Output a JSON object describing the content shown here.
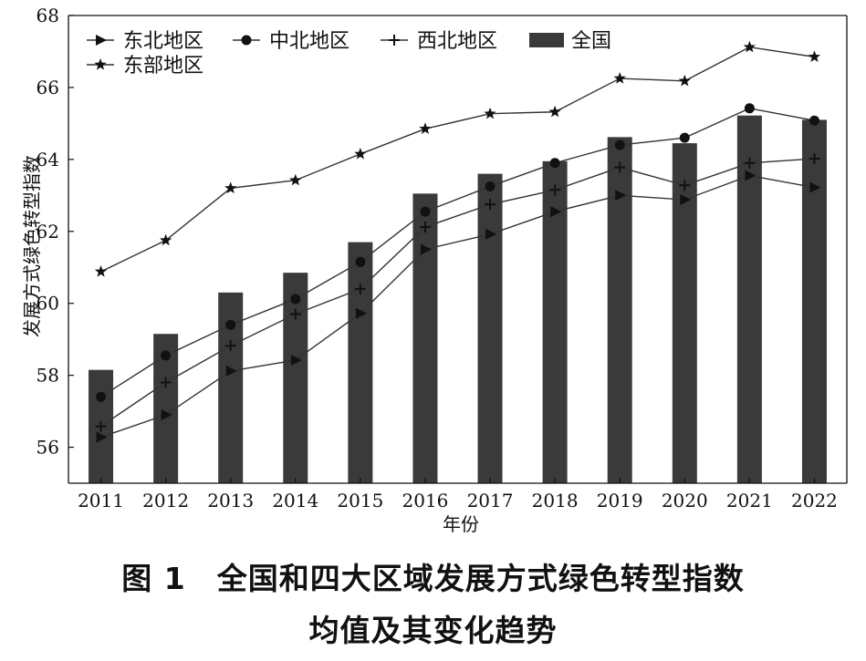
{
  "chart_data": {
    "type": "bar",
    "categories": [
      "2011",
      "2012",
      "2013",
      "2014",
      "2015",
      "2016",
      "2017",
      "2018",
      "2019",
      "2020",
      "2021",
      "2022"
    ],
    "xlabel": "年份",
    "ylabel": "发展方式绿色转型指数",
    "ylim": [
      55,
      68
    ],
    "yticks": [
      56,
      58,
      60,
      62,
      64,
      66,
      68
    ],
    "legend": "top-left",
    "bar_series": {
      "name": "全国",
      "color": "#3a3a3a",
      "values": [
        58.15,
        59.15,
        60.3,
        60.85,
        61.7,
        63.05,
        63.6,
        63.95,
        64.62,
        64.45,
        65.22,
        65.1
      ]
    },
    "line_series": [
      {
        "name": "东北地区",
        "marker": "triangle-right",
        "values": [
          56.28,
          56.9,
          58.12,
          58.42,
          59.72,
          61.5,
          61.92,
          62.55,
          63.0,
          62.88,
          63.55,
          63.22
        ]
      },
      {
        "name": "中北地区",
        "marker": "circle",
        "values": [
          57.4,
          58.55,
          59.4,
          60.12,
          61.15,
          62.55,
          63.25,
          63.9,
          64.4,
          64.6,
          65.42,
          65.08
        ]
      },
      {
        "name": "西北地区",
        "marker": "plus",
        "values": [
          56.58,
          57.8,
          58.82,
          59.7,
          60.4,
          62.12,
          62.75,
          63.15,
          63.78,
          63.28,
          63.9,
          64.02
        ]
      },
      {
        "name": "东部地区",
        "marker": "star",
        "values": [
          60.88,
          61.75,
          63.2,
          63.42,
          64.15,
          64.85,
          65.27,
          65.32,
          66.25,
          66.18,
          67.12,
          66.85
        ]
      }
    ],
    "colors": {
      "line": "#333333",
      "axis": "#111111"
    }
  },
  "caption": {
    "line1": "图 1　全国和四大区域发展方式绿色转型指数",
    "line2": "均值及其变化趋势"
  }
}
